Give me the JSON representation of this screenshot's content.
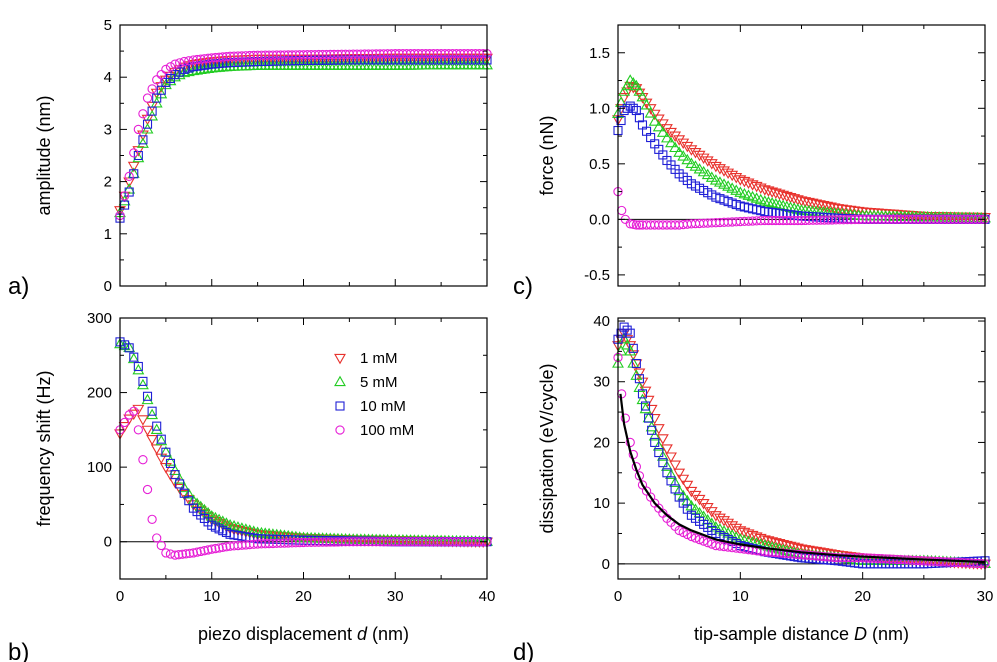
{
  "colors": {
    "1 mM": "#e8322d",
    "5 mM": "#22cc22",
    "10 mM": "#1f1fd6",
    "100 mM": "#e61fd6"
  },
  "markers": {
    "1 mM": "triangle-down",
    "5 mM": "triangle-up",
    "10 mM": "square",
    "100 mM": "circle"
  },
  "chart_data": [
    {
      "id": "a",
      "type": "scatter",
      "panel_label": "a)",
      "xlabel": "",
      "ylabel": "amplitude (nm)",
      "xlim": [
        0,
        40
      ],
      "ylim": [
        0,
        5
      ],
      "xticks": [
        0,
        10,
        20,
        30,
        40
      ],
      "yticks": [
        0,
        1,
        2,
        3,
        4,
        5
      ],
      "show_x_tick_labels": false,
      "zero_line": false,
      "series": [
        {
          "name": "1 mM",
          "x": [
            0,
            1,
            2,
            3,
            4,
            5,
            6,
            7,
            8,
            10,
            12,
            15,
            20,
            25,
            30,
            35,
            40
          ],
          "y": [
            1.45,
            2.0,
            2.6,
            3.2,
            3.7,
            3.95,
            4.1,
            4.2,
            4.25,
            4.3,
            4.33,
            4.35,
            4.35,
            4.36,
            4.37,
            4.37,
            4.37
          ]
        },
        {
          "name": "5 mM",
          "x": [
            0,
            1,
            2,
            3,
            4,
            5,
            6,
            7,
            8,
            10,
            12,
            15,
            20,
            25,
            30,
            35,
            40
          ],
          "y": [
            1.4,
            1.85,
            2.45,
            3.0,
            3.5,
            3.85,
            4.0,
            4.08,
            4.12,
            4.17,
            4.2,
            4.22,
            4.22,
            4.22,
            4.22,
            4.23,
            4.23
          ]
        },
        {
          "name": "10 mM",
          "x": [
            0,
            1,
            2,
            3,
            4,
            5,
            6,
            7,
            8,
            10,
            12,
            15,
            20,
            25,
            30,
            35,
            40
          ],
          "y": [
            1.3,
            1.8,
            2.5,
            3.1,
            3.6,
            3.9,
            4.05,
            4.15,
            4.2,
            4.25,
            4.28,
            4.3,
            4.32,
            4.33,
            4.33,
            4.33,
            4.33
          ]
        },
        {
          "name": "100 mM",
          "x": [
            0,
            1,
            2,
            3,
            4,
            5,
            6,
            7,
            8,
            10,
            12,
            15,
            20,
            25,
            30,
            35,
            40
          ],
          "y": [
            1.35,
            2.1,
            3.0,
            3.6,
            3.95,
            4.15,
            4.25,
            4.3,
            4.33,
            4.37,
            4.4,
            4.42,
            4.43,
            4.44,
            4.45,
            4.45,
            4.45
          ]
        }
      ]
    },
    {
      "id": "b",
      "type": "scatter",
      "panel_label": "b)",
      "xlabel": "piezo displacement d (nm)",
      "xlabel_main": "piezo displacement ",
      "xlabel_italic": "d",
      "xlabel_unit": " (nm)",
      "ylabel": "frequency shift (Hz)",
      "xlim": [
        0,
        40
      ],
      "ylim": [
        -50,
        300
      ],
      "xticks": [
        0,
        10,
        20,
        30,
        40
      ],
      "yticks": [
        0,
        100,
        200,
        300
      ],
      "show_x_tick_labels": true,
      "zero_line": true,
      "legend": true,
      "series": [
        {
          "name": "1 mM",
          "x": [
            0,
            1,
            2,
            3,
            4,
            5,
            6,
            7,
            8,
            10,
            12,
            15,
            20,
            25,
            30,
            35,
            40
          ],
          "y": [
            145,
            165,
            178,
            150,
            125,
            100,
            80,
            64,
            50,
            30,
            18,
            10,
            5,
            3,
            2,
            1,
            0
          ]
        },
        {
          "name": "5 mM",
          "x": [
            0,
            1,
            2,
            3,
            4,
            5,
            6,
            7,
            8,
            10,
            12,
            15,
            20,
            25,
            30,
            35,
            40
          ],
          "y": [
            265,
            260,
            230,
            190,
            150,
            120,
            95,
            72,
            55,
            34,
            22,
            12,
            5,
            3,
            2,
            1,
            0
          ]
        },
        {
          "name": "10 mM",
          "x": [
            0,
            1,
            2,
            3,
            4,
            5,
            6,
            7,
            8,
            10,
            12,
            15,
            20,
            25,
            30,
            35,
            40
          ],
          "y": [
            268,
            260,
            235,
            195,
            155,
            120,
            90,
            65,
            45,
            22,
            10,
            4,
            2,
            1,
            0,
            0,
            0
          ]
        },
        {
          "name": "100 mM",
          "x": [
            0,
            0.5,
            1,
            1.5,
            2,
            2.5,
            3,
            3.5,
            4,
            5,
            6,
            8,
            10,
            12,
            15,
            20,
            25,
            30,
            35,
            40
          ],
          "y": [
            150,
            160,
            170,
            175,
            150,
            110,
            70,
            30,
            5,
            -15,
            -18,
            -15,
            -10,
            -6,
            -3,
            -1,
            0,
            0,
            0,
            0
          ]
        }
      ]
    },
    {
      "id": "c",
      "type": "scatter",
      "panel_label": "c)",
      "xlabel": "",
      "ylabel": "force (nN)",
      "xlim": [
        0,
        30
      ],
      "ylim": [
        -0.6,
        1.75
      ],
      "xticks": [
        0,
        10,
        20,
        30
      ],
      "yticks": [
        -0.5,
        0.0,
        0.5,
        1.0,
        1.5
      ],
      "ytick_labels": [
        "-0.5",
        "0.0",
        "0.5",
        "1.0",
        "1.5"
      ],
      "show_x_tick_labels": false,
      "zero_line": true,
      "series": [
        {
          "name": "1 mM",
          "x": [
            0,
            0.5,
            1,
            1.5,
            2,
            3,
            4,
            5,
            6,
            8,
            10,
            12,
            15,
            18,
            20,
            25,
            30
          ],
          "y": [
            0.9,
            1.1,
            1.2,
            1.18,
            1.1,
            0.95,
            0.82,
            0.72,
            0.63,
            0.48,
            0.36,
            0.27,
            0.17,
            0.1,
            0.07,
            0.03,
            0.02
          ]
        },
        {
          "name": "5 mM",
          "x": [
            0,
            0.5,
            1,
            1.5,
            2,
            3,
            4,
            5,
            6,
            8,
            10,
            12,
            15,
            18,
            20,
            25,
            30
          ],
          "y": [
            0.95,
            1.15,
            1.25,
            1.2,
            1.1,
            0.88,
            0.73,
            0.6,
            0.5,
            0.35,
            0.24,
            0.16,
            0.08,
            0.05,
            0.03,
            0.02,
            0.01
          ]
        },
        {
          "name": "10 mM",
          "x": [
            0,
            0.5,
            1,
            1.5,
            2,
            3,
            4,
            5,
            6,
            8,
            10,
            12,
            15,
            18,
            20,
            25,
            30
          ],
          "y": [
            0.8,
            0.98,
            1.02,
            0.98,
            0.85,
            0.68,
            0.53,
            0.41,
            0.32,
            0.2,
            0.12,
            0.07,
            0.03,
            0.01,
            0.0,
            0.0,
            0.0
          ]
        },
        {
          "name": "100 mM",
          "x": [
            0,
            0.3,
            0.6,
            1,
            1.5,
            2,
            3,
            4,
            5,
            6,
            8,
            10,
            12,
            15,
            20,
            25,
            30
          ],
          "y": [
            0.25,
            0.08,
            0.0,
            -0.04,
            -0.05,
            -0.05,
            -0.05,
            -0.05,
            -0.05,
            -0.04,
            -0.03,
            -0.02,
            -0.01,
            -0.01,
            0.0,
            0.0,
            0.0
          ]
        }
      ]
    },
    {
      "id": "d",
      "type": "scatter",
      "panel_label": "d)",
      "xlabel": "tip-sample distance D (nm)",
      "xlabel_main": "tip-sample distance ",
      "xlabel_italic": "D",
      "xlabel_unit": " (nm)",
      "ylabel": "dissipation (eV/cycle)",
      "xlim": [
        0,
        30
      ],
      "ylim": [
        -2.5,
        40.5
      ],
      "xticks": [
        0,
        10,
        20,
        30
      ],
      "yticks": [
        0,
        10,
        20,
        30,
        40
      ],
      "show_x_tick_labels": true,
      "zero_line": true,
      "series": [
        {
          "name": "1 mM",
          "x": [
            0,
            0.5,
            1,
            1.5,
            2,
            2.5,
            3,
            4,
            5,
            6,
            8,
            10,
            12,
            15,
            18,
            20,
            25,
            30
          ],
          "y": [
            36,
            38,
            36,
            33,
            30,
            27,
            24,
            19,
            15,
            12,
            8,
            5.5,
            4,
            2.5,
            1.5,
            1,
            0.5,
            0
          ]
        },
        {
          "name": "5 mM",
          "x": [
            0,
            0.5,
            1,
            1.5,
            2,
            2.5,
            3,
            4,
            5,
            6,
            8,
            10,
            12,
            15,
            18,
            20,
            25,
            30
          ],
          "y": [
            33,
            37,
            35,
            31,
            27,
            24,
            21,
            16,
            12,
            9.5,
            6,
            4,
            3,
            1.5,
            1,
            0.5,
            0.5,
            0
          ]
        },
        {
          "name": "10 mM",
          "x": [
            0,
            0.5,
            1,
            1.5,
            2,
            2.5,
            3,
            4,
            5,
            6,
            8,
            10,
            12,
            15,
            18,
            20,
            25,
            30
          ],
          "y": [
            37,
            39,
            38,
            33,
            28,
            24,
            20,
            15,
            11,
            8,
            5,
            3,
            2,
            1,
            0.5,
            0,
            0,
            0.5
          ]
        },
        {
          "name": "100 mM",
          "x": [
            0,
            0.3,
            0.6,
            1,
            1.5,
            2,
            3,
            4,
            5,
            6,
            8,
            10,
            12,
            15,
            18,
            20,
            25,
            30
          ],
          "y": [
            34,
            28,
            24,
            20,
            16,
            13,
            10,
            7.5,
            5.5,
            4.5,
            3,
            2.5,
            2,
            1.5,
            1,
            1,
            0.5,
            0
          ]
        }
      ],
      "fit_curve": {
        "x": [
          0.2,
          0.5,
          1,
          1.5,
          2,
          3,
          4,
          5,
          6,
          8,
          10,
          12,
          15,
          18,
          20,
          25,
          30
        ],
        "y": [
          28,
          23,
          18.5,
          15.5,
          13,
          10,
          8,
          6.5,
          5.5,
          4,
          3.2,
          2.6,
          1.9,
          1.4,
          1.2,
          0.7,
          0.3
        ]
      }
    }
  ]
}
